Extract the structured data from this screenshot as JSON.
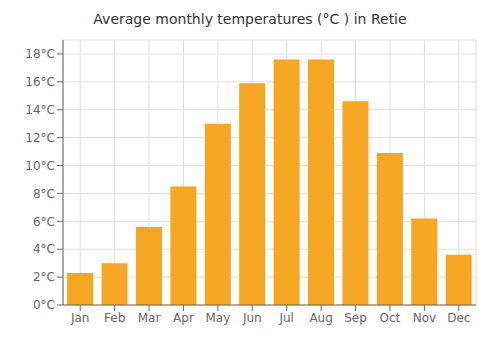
{
  "chart_data": {
    "type": "bar",
    "title": "Average monthly temperatures (°C ) in Retie",
    "categories": [
      "Jan",
      "Feb",
      "Mar",
      "Apr",
      "May",
      "Jun",
      "Jul",
      "Aug",
      "Sep",
      "Oct",
      "Nov",
      "Dec"
    ],
    "values": [
      2.3,
      3.0,
      5.6,
      8.5,
      13.0,
      15.9,
      17.6,
      17.6,
      14.6,
      10.9,
      6.2,
      3.6
    ],
    "color": "#F5A623",
    "ylim": [
      0,
      19
    ],
    "yticks": [
      {
        "value": 0,
        "label": "0°C"
      },
      {
        "value": 2,
        "label": "2°C"
      },
      {
        "value": 4,
        "label": "4°C"
      },
      {
        "value": 6,
        "label": "6°C"
      },
      {
        "value": 8,
        "label": "8°C"
      },
      {
        "value": 10,
        "label": "10°C"
      },
      {
        "value": 12,
        "label": "12°C"
      },
      {
        "value": 14,
        "label": "14°C"
      },
      {
        "value": 16,
        "label": "16°C"
      },
      {
        "value": 18,
        "label": "18°C"
      }
    ],
    "grid": true
  }
}
